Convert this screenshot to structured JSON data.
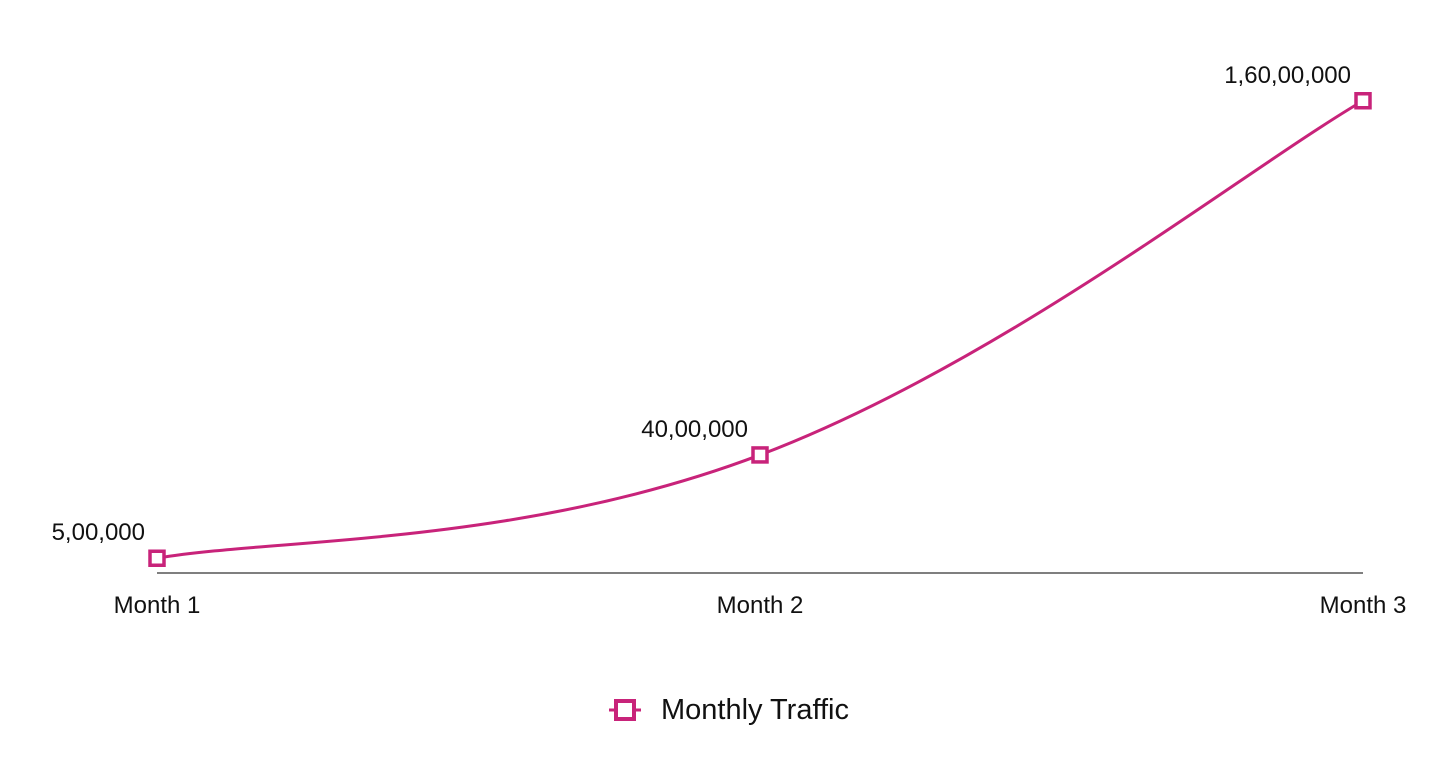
{
  "chart_data": {
    "type": "line",
    "title": "",
    "xlabel": "",
    "ylabel": "",
    "categories": [
      "Month 1",
      "Month 2",
      "Month 3"
    ],
    "series": [
      {
        "name": "Monthly Traffic",
        "values": [
          500000,
          4000000,
          16000000
        ],
        "value_labels": [
          "5,00,000",
          "40,00,000",
          "1,60,00,000"
        ],
        "color": "#C8237A",
        "marker": "hollow-square",
        "smooth": true
      }
    ],
    "ylim": [
      0,
      16500000
    ],
    "grid": false,
    "legend_position": "bottom-center"
  }
}
